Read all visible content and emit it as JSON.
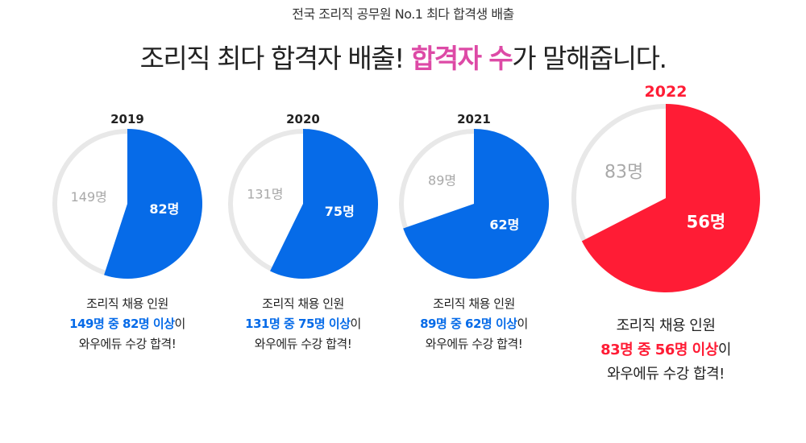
{
  "header": {
    "subtitle": "전국 조리직 공무원 No.1 최다 합격생 배출",
    "headline_part1": "조리직 최다 합격자 배출! ",
    "headline_highlight": "합격자 수",
    "headline_part2": "가 말해줍니다."
  },
  "colors": {
    "blue": "#066be8",
    "red": "#ff1c35",
    "ring": "#e8e8e8",
    "light_label": "#a9a9a9",
    "highlight": "#dd4aa6"
  },
  "chart_data": [
    {
      "type": "pie",
      "title": "2019",
      "total": 149,
      "passed": 82,
      "labels": {
        "total": "149명",
        "passed": "82명"
      },
      "caption": {
        "line1": "조리직 채용 인원",
        "accent": "149명 중 82명 이상",
        "suffix": "이",
        "line3": "와우에듀 수강 합격!"
      }
    },
    {
      "type": "pie",
      "title": "2020",
      "total": 131,
      "passed": 75,
      "labels": {
        "total": "131명",
        "passed": "75명"
      },
      "caption": {
        "line1": "조리직 채용 인원",
        "accent": "131명 중 75명 이상",
        "suffix": "이",
        "line3": "와우에듀 수강 합격!"
      }
    },
    {
      "type": "pie",
      "title": "2021",
      "total": 89,
      "passed": 62,
      "labels": {
        "total": "89명",
        "passed": "62명"
      },
      "caption": {
        "line1": "조리직 채용 인원",
        "accent": "89명 중 62명 이상",
        "suffix": "이",
        "line3": "와우에듀 수강 합격!"
      }
    },
    {
      "type": "pie",
      "title": "2022",
      "total": 83,
      "passed": 56,
      "highlight": true,
      "labels": {
        "total": "83명",
        "passed": "56명"
      },
      "caption": {
        "line1": "조리직 채용 인원",
        "accent": "83명 중 56명 이상",
        "suffix": "이",
        "line3": "와우에듀 수강 합격!"
      }
    }
  ]
}
